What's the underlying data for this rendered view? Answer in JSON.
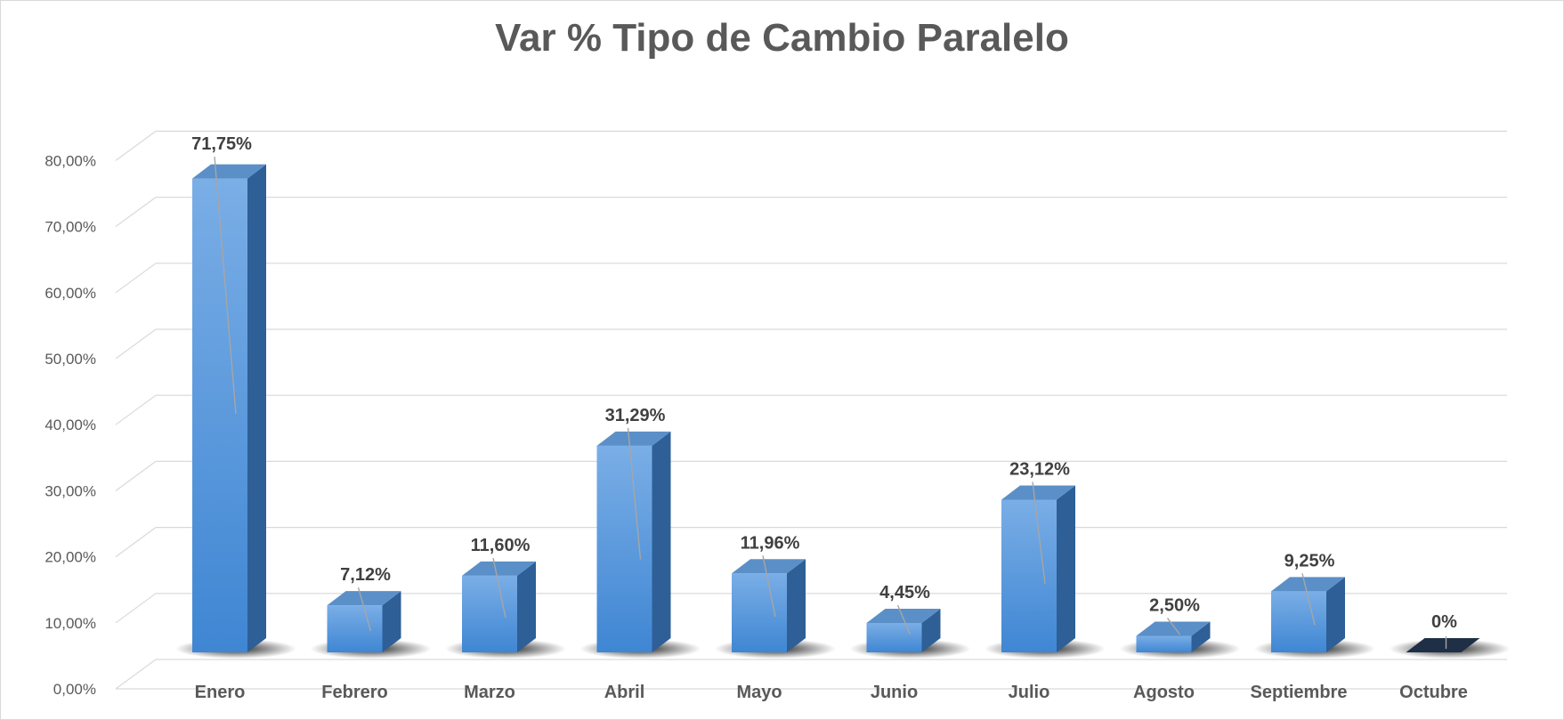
{
  "chart_data": {
    "type": "bar",
    "title": "Var % Tipo de Cambio Paralelo",
    "categories": [
      "Enero",
      "Febrero",
      "Marzo",
      "Abril",
      "Mayo",
      "Junio",
      "Julio",
      "Agosto",
      "Septiembre",
      "Octubre"
    ],
    "values": [
      71.75,
      7.12,
      11.6,
      31.29,
      11.96,
      4.45,
      23.12,
      2.5,
      9.25,
      0
    ],
    "data_labels": [
      "71,75%",
      "7,12%",
      "11,60%",
      "31,29%",
      "11,96%",
      "4,45%",
      "23,12%",
      "2,50%",
      "9,25%",
      "0%"
    ],
    "yticks": [
      "0,00%",
      "10,00%",
      "20,00%",
      "30,00%",
      "40,00%",
      "50,00%",
      "60,00%",
      "70,00%",
      "80,00%"
    ],
    "ylim": [
      0,
      80
    ],
    "grid": true,
    "legend": "none",
    "style": "3d-column",
    "colors": {
      "bar_front_top": "#7aaee6",
      "bar_front_bottom": "#3f86d3",
      "bar_side": "#2e5f96",
      "bar_top": "#5b8fc8",
      "zero_bar": "#1f2f45",
      "grid": "#d9d9d9",
      "axis_text": "#595959",
      "label_text": "#404040"
    }
  }
}
